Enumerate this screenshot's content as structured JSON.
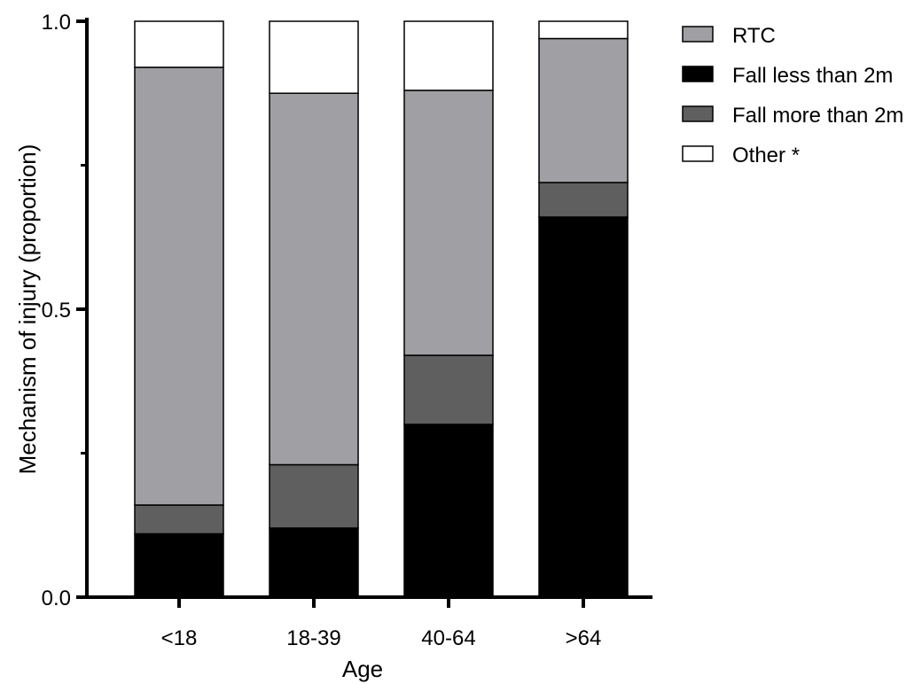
{
  "chart_data": {
    "type": "bar",
    "stacked": true,
    "xlabel": "Age",
    "ylabel": "Mechanism of injury (proportion)",
    "ylim": [
      0,
      1
    ],
    "yticks": [
      0.0,
      0.5,
      1.0
    ],
    "ytick_labels": [
      "0.0",
      "0.5",
      "1.0"
    ],
    "grid": false,
    "legend_position": "top-right",
    "categories": [
      "<18",
      "18-39",
      "40-64",
      ">64"
    ],
    "series": [
      {
        "name": "Fall less than 2m",
        "color": "#000000",
        "values": [
          0.11,
          0.12,
          0.3,
          0.66
        ]
      },
      {
        "name": "Fall more than 2m",
        "color": "#5f5f5f",
        "values": [
          0.05,
          0.11,
          0.12,
          0.06
        ]
      },
      {
        "name": "RTC",
        "color": "#a0a0a4",
        "values": [
          0.76,
          0.645,
          0.46,
          0.25
        ]
      },
      {
        "name": "Other *",
        "color": "#ffffff",
        "values": [
          0.08,
          0.125,
          0.12,
          0.03
        ]
      }
    ],
    "legend_order": [
      "RTC",
      "Fall less than 2m",
      "Fall more than 2m",
      "Other *"
    ]
  }
}
